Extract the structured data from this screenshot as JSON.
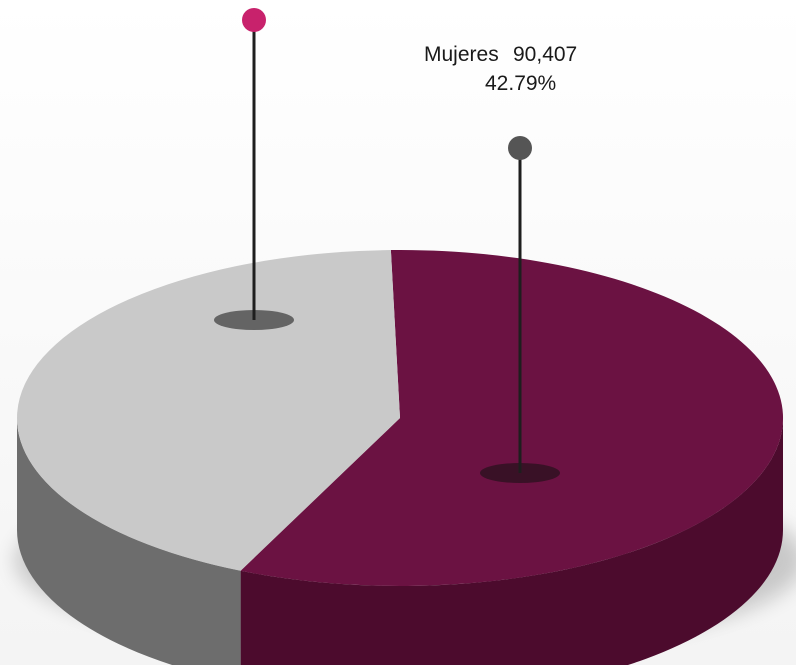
{
  "chart_data": {
    "type": "pie",
    "style": "3d",
    "slices": [
      {
        "key": "unlabeled",
        "name": "",
        "value_text": "",
        "percent_text": "",
        "percent": 57.21,
        "color": "#6b1242",
        "side_color": "#4c0b2d",
        "pin_color": "#c8226c"
      },
      {
        "key": "mujeres",
        "name": "Mujeres",
        "value_text": "90,407",
        "percent_text": "42.79%",
        "percent": 42.79,
        "color": "#c9c9c9",
        "side_color": "#6d6d6d",
        "pin_color": "#555555"
      }
    ]
  }
}
